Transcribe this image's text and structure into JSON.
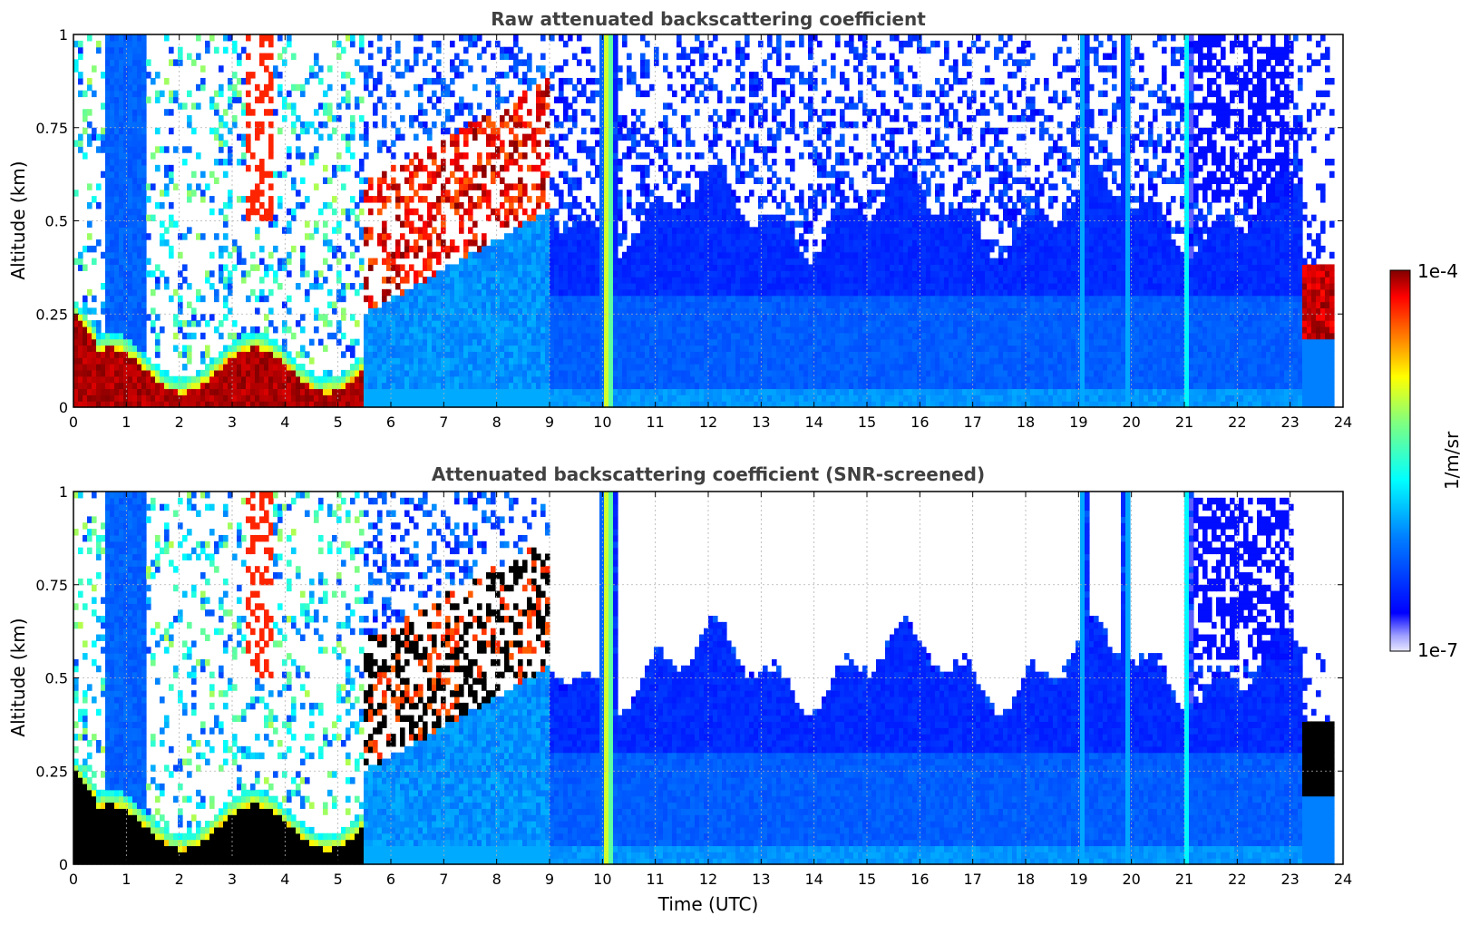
{
  "chart_data": [
    {
      "type": "heatmap",
      "title": "Raw attenuated backscattering coefficient",
      "xlabel": "",
      "ylabel": "Altitude (km)",
      "xlim": [
        0,
        24
      ],
      "ylim": [
        0,
        1
      ],
      "x_ticks": [
        "0",
        "1",
        "2",
        "3",
        "4",
        "5",
        "6",
        "7",
        "8",
        "9",
        "10",
        "11",
        "12",
        "13",
        "14",
        "15",
        "16",
        "17",
        "18",
        "19",
        "20",
        "21",
        "22",
        "23",
        "24"
      ],
      "y_ticks": [
        "0",
        "0.25",
        "0.5",
        "0.75",
        "1"
      ],
      "grid": true,
      "screened": false
    },
    {
      "type": "heatmap",
      "title": "Attenuated backscattering coefficient (SNR-screened)",
      "xlabel": "Time (UTC)",
      "ylabel": "Altitude (km)",
      "xlim": [
        0,
        24
      ],
      "ylim": [
        0,
        1
      ],
      "x_ticks": [
        "0",
        "1",
        "2",
        "3",
        "4",
        "5",
        "6",
        "7",
        "8",
        "9",
        "10",
        "11",
        "12",
        "13",
        "14",
        "15",
        "16",
        "17",
        "18",
        "19",
        "20",
        "21",
        "22",
        "23",
        "24"
      ],
      "y_ticks": [
        "0",
        "0.25",
        "0.5",
        "0.75",
        "1"
      ],
      "grid": true,
      "screened": true
    }
  ],
  "colorbar": {
    "label": "1/m/sr",
    "max_label": "1e-4",
    "min_label": "1e-7",
    "colormap": "jet",
    "placement": "right"
  },
  "features": {
    "vertical_stripes_utc": [
      10.1,
      19.1,
      19.9,
      21.05
    ],
    "data_gap_utc": [
      23.85,
      24
    ],
    "low_cloud_late_utc": [
      23.2,
      23.85
    ]
  }
}
